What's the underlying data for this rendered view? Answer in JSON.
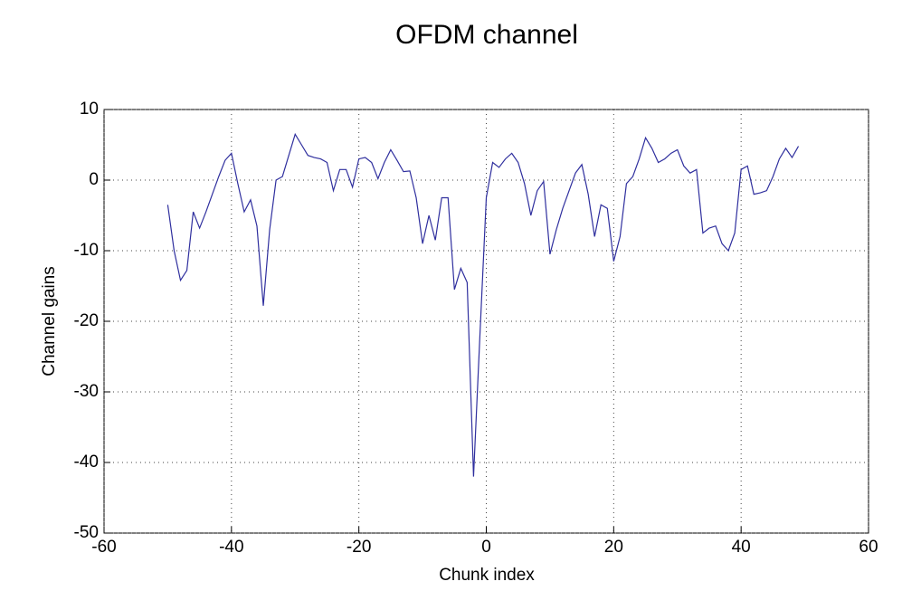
{
  "chart_data": {
    "type": "line",
    "title": "OFDM channel",
    "xlabel": "Chunk index",
    "ylabel": "Channel gains",
    "x": [
      -50,
      -49,
      -48,
      -47,
      -46,
      -45,
      -44,
      -43,
      -42,
      -41,
      -40,
      -39,
      -38,
      -37,
      -36,
      -35,
      -34,
      -33,
      -32,
      -31,
      -30,
      -29,
      -28,
      -27,
      -26,
      -25,
      -24,
      -23,
      -22,
      -21,
      -20,
      -19,
      -18,
      -17,
      -16,
      -15,
      -14,
      -13,
      -12,
      -11,
      -10,
      -9,
      -8,
      -7,
      -6,
      -5,
      -4,
      -3,
      -2,
      -1,
      0,
      1,
      2,
      3,
      4,
      5,
      6,
      7,
      8,
      9,
      10,
      11,
      12,
      13,
      14,
      15,
      16,
      17,
      18,
      19,
      20,
      21,
      22,
      23,
      24,
      25,
      26,
      27,
      28,
      29,
      30,
      31,
      32,
      33,
      34,
      35,
      36,
      37,
      38,
      39,
      40,
      41,
      42,
      43,
      44,
      45,
      46,
      47,
      48,
      49
    ],
    "series": [
      {
        "color": "#2f2f9e",
        "values": [
          -3.5,
          -10,
          -14.2,
          -12.8,
          -4.5,
          -6.8,
          -4.5,
          -2,
          0.5,
          2.8,
          3.8,
          -0.5,
          -4.5,
          -2.8,
          -6.5,
          -17.8,
          -7,
          0,
          0.5,
          3.5,
          6.5,
          5,
          3.5,
          3.2,
          3,
          2.5,
          -1.5,
          1.5,
          1.5,
          -1,
          3,
          3.2,
          2.5,
          0.2,
          2.5,
          4.3,
          2.8,
          1.2,
          1.3,
          -2.5,
          -9,
          -5,
          -8.5,
          -2.5,
          -2.5,
          -15.5,
          -12.5,
          -14.5,
          -42,
          -22,
          -2.5,
          2.5,
          1.8,
          3,
          3.8,
          2.5,
          -0.5,
          -5,
          -1.5,
          -0.2,
          -10.5,
          -7,
          -4,
          -1.5,
          1,
          2.2,
          -2,
          -8,
          -3.5,
          -4,
          -11.5,
          -8,
          -0.5,
          0.5,
          3,
          6,
          4.5,
          2.5,
          3,
          3.8,
          4.3,
          2,
          1,
          1.5,
          -7.5,
          -6.8,
          -6.5,
          -9,
          -10,
          -7.5,
          1.5,
          2,
          -2,
          -1.8,
          -1.5,
          0.5,
          3,
          4.5,
          3.2,
          4.8
        ]
      }
    ],
    "xlim": [
      -60,
      60
    ],
    "ylim": [
      -50,
      10
    ],
    "xticks": [
      -60,
      -40,
      -20,
      0,
      20,
      40,
      60
    ],
    "yticks": [
      -50,
      -40,
      -30,
      -20,
      -10,
      0,
      10
    ],
    "grid": true
  }
}
